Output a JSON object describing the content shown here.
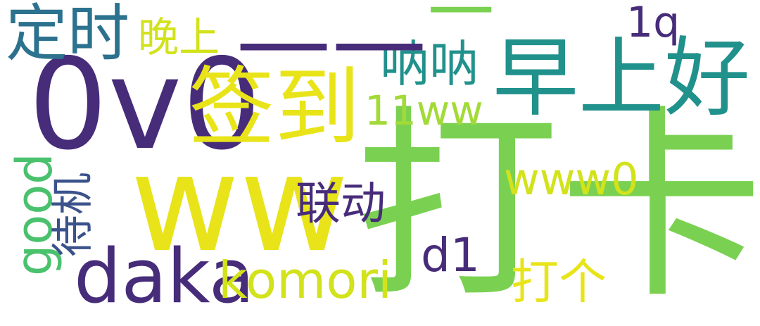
{
  "wordcloud": {
    "words": [
      {
        "text": "打卡",
        "color": "#7ad151"
      },
      {
        "text": "0v0",
        "color": "#472c7a"
      },
      {
        "text": "早上好",
        "color": "#21918c"
      },
      {
        "text": "ww",
        "color": "#e8e419"
      },
      {
        "text": "签到",
        "color": "#e8e419"
      },
      {
        "text": "daka",
        "color": "#472c7a"
      },
      {
        "text": "komori",
        "color": "#d2e21b"
      },
      {
        "text": "定时",
        "color": "#2c728e"
      },
      {
        "text": "呐呐",
        "color": "#21918c"
      },
      {
        "text": "11ww",
        "color": "#a2da37"
      },
      {
        "text": "——",
        "color": "#472c7a"
      },
      {
        "text": "一",
        "color": "#7ad151"
      },
      {
        "text": "www0",
        "color": "#d2e21b"
      },
      {
        "text": "联动",
        "color": "#472c7a"
      },
      {
        "text": "good",
        "color": "#4ac16d"
      },
      {
        "text": "待机",
        "color": "#3b528b"
      },
      {
        "text": "打个",
        "color": "#e8e419"
      },
      {
        "text": "d1",
        "color": "#472c7a"
      },
      {
        "text": "1q",
        "color": "#472c7a"
      },
      {
        "text": "晚上",
        "color": "#d2e21b"
      }
    ]
  }
}
